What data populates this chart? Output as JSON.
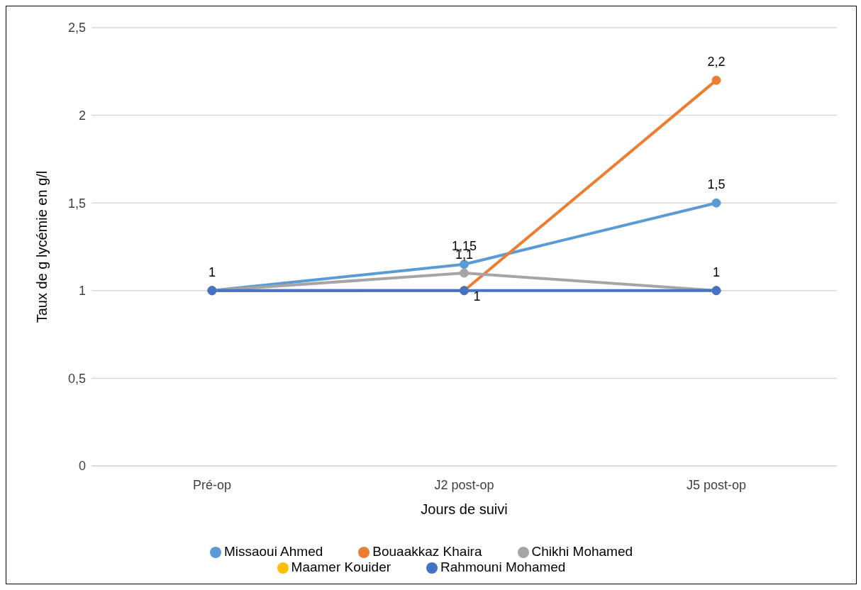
{
  "chart_data": {
    "type": "line",
    "xlabel": "Jours de suivi",
    "ylabel": "Taux de g lycémie en g/l",
    "categories": [
      "Pré-op",
      "J2 post-op",
      "J5 post-op"
    ],
    "series": [
      {
        "name": "Missaoui Ahmed",
        "color": "#5b9bd5",
        "values": [
          1,
          1.15,
          1.5
        ],
        "value_labels": [
          "1",
          "1,15",
          "1,5"
        ]
      },
      {
        "name": "Bouaakkaz Khaira",
        "color": "#ed7d31",
        "values": [
          1,
          1,
          2.2
        ],
        "value_labels": [
          null,
          "1",
          "2,2"
        ]
      },
      {
        "name": "Chikhi Mohamed",
        "color": "#a5a5a5",
        "values": [
          1,
          1.1,
          1
        ],
        "value_labels": [
          null,
          "1,1",
          null
        ]
      },
      {
        "name": "Maamer Kouider",
        "color": "#ffc000",
        "values": [
          null,
          null,
          null
        ]
      },
      {
        "name": "Rahmouni Mohamed",
        "color": "#4472c4",
        "values": [
          1,
          1,
          1
        ],
        "value_labels": [
          null,
          null,
          "1"
        ]
      }
    ],
    "ylim": [
      0,
      2.5
    ],
    "yticks": [
      0,
      {
        "value": 0.5,
        "label": "0,5"
      },
      1,
      {
        "value": 1.5,
        "label": "1,5"
      },
      2,
      {
        "value": 2.5,
        "label": "2,5"
      }
    ],
    "grid": "y",
    "legend": "bottom",
    "marker": "circle",
    "line_style": "solid"
  }
}
